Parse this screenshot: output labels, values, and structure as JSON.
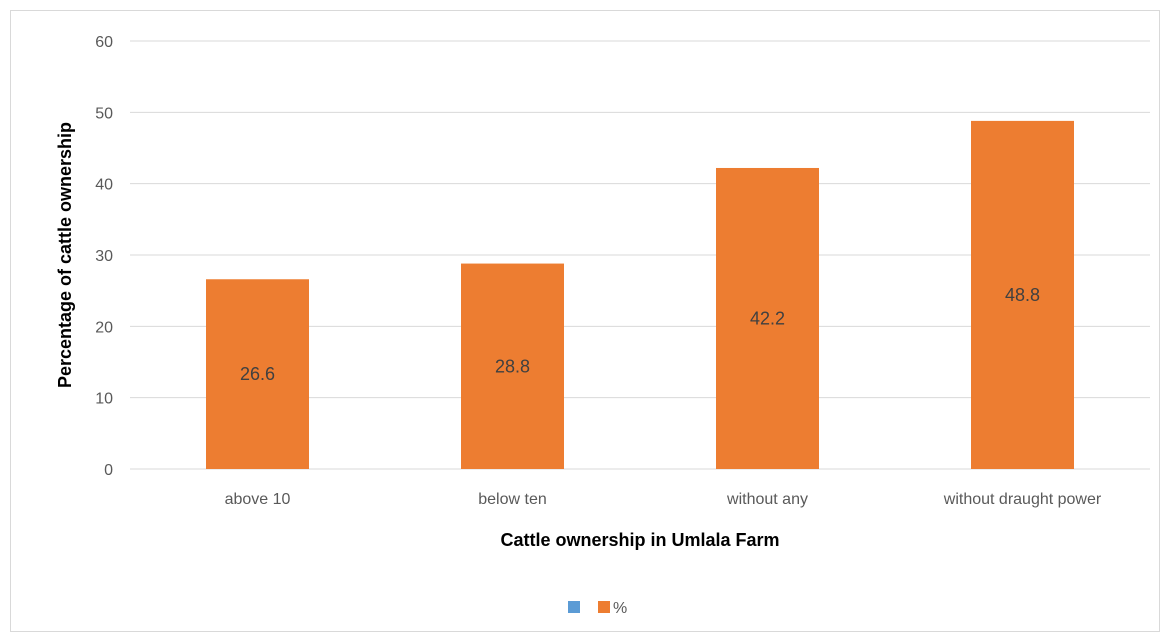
{
  "chart_data": {
    "type": "bar",
    "categories": [
      "above 10",
      "below ten",
      "without any",
      "without draught power"
    ],
    "series": [
      {
        "name": "",
        "values": [
          null,
          null,
          null,
          null
        ],
        "color": "#5b9bd5"
      },
      {
        "name": "%",
        "values": [
          26.6,
          28.8,
          42.2,
          48.8
        ],
        "color": "#ed7d31"
      }
    ],
    "data_labels": [
      "26.6",
      "28.8",
      "42.2",
      "48.8"
    ],
    "title": "",
    "xlabel": "Cattle ownership in Umlala Farm",
    "ylabel": "Percentage of cattle ownership",
    "ylim": [
      0,
      60
    ],
    "yticks": [
      "0",
      "10",
      "20",
      "30",
      "40",
      "50",
      "60"
    ],
    "grid": true,
    "legend_position": "bottom"
  }
}
